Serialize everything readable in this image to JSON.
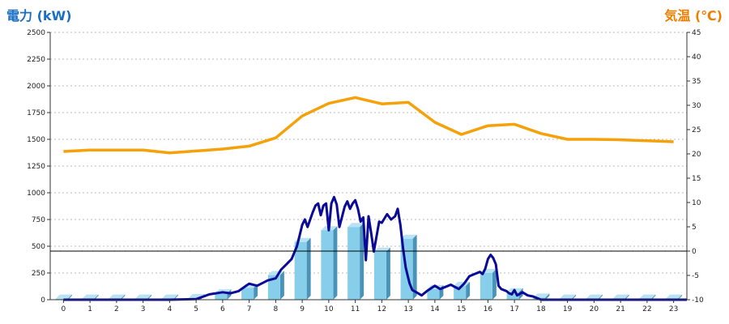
{
  "colors": {
    "left_title": "#1a6fc4",
    "right_title": "#ef7d00",
    "temperature_line": "#f5a10a",
    "power_line": "#0a0a96",
    "bar_front": "#87ceeb",
    "bar_side": "#4a93b8",
    "bar_top": "#b9e3f5",
    "grid": "#bbbbbb",
    "zero_line": "#000000"
  },
  "chart_data": {
    "type": "bar",
    "title": "",
    "left_axis_title": "電力 (kW)",
    "right_axis_title": "気温 (℃)",
    "grid": true,
    "x_categories": [
      "0",
      "1",
      "2",
      "3",
      "4",
      "5",
      "6",
      "7",
      "8",
      "9",
      "10",
      "11",
      "12",
      "13",
      "14",
      "15",
      "16",
      "17",
      "18",
      "19",
      "20",
      "21",
      "22",
      "23"
    ],
    "y_left": {
      "ylim": [
        0,
        2500
      ],
      "ticks": [
        "0",
        "250",
        "500",
        "750",
        "1000",
        "1250",
        "1500",
        "1750",
        "2000",
        "2250",
        "2500"
      ]
    },
    "y_right": {
      "ylim": [
        -10,
        45
      ],
      "ticks": [
        "-10",
        "-5",
        "0",
        "5",
        "10",
        "15",
        "20",
        "25",
        "30",
        "35",
        "40",
        "45"
      ]
    },
    "reference_line_right": 0,
    "series": [
      {
        "kind": "bar",
        "axis": "left",
        "values": [
          10,
          10,
          10,
          10,
          10,
          15,
          60,
          110,
          230,
          540,
          650,
          680,
          450,
          570,
          100,
          130,
          250,
          70,
          20,
          10,
          10,
          10,
          10,
          10
        ]
      },
      {
        "kind": "line",
        "axis": "right",
        "values": [
          20.5,
          20.8,
          20.8,
          20.8,
          20.2,
          20.6,
          21.0,
          21.6,
          23.3,
          27.8,
          30.4,
          31.6,
          30.3,
          30.6,
          26.5,
          24.0,
          25.8,
          26.1,
          24.2,
          23.0,
          23.0,
          22.9,
          22.7,
          22.5
        ]
      },
      {
        "kind": "line",
        "axis": "left",
        "x": [
          0,
          4,
          5,
          5.5,
          6,
          6.3,
          6.6,
          7,
          7.3,
          7.7,
          8,
          8.2,
          8.4,
          8.6,
          8.8,
          8.9,
          9,
          9.1,
          9.2,
          9.4,
          9.5,
          9.6,
          9.7,
          9.8,
          9.9,
          10,
          10.1,
          10.2,
          10.3,
          10.4,
          10.6,
          10.7,
          10.8,
          10.9,
          11,
          11.1,
          11.2,
          11.3,
          11.4,
          11.5,
          11.6,
          11.7,
          11.9,
          12,
          12.2,
          12.35,
          12.5,
          12.6,
          12.7,
          12.8,
          12.9,
          13,
          13.05,
          13.1,
          13.15,
          13.3,
          13.5,
          13.7,
          14,
          14.2,
          14.4,
          14.6,
          14.9,
          15.1,
          15.3,
          15.5,
          15.7,
          15.8,
          15.9,
          16,
          16.1,
          16.2,
          16.3,
          16.4,
          16.5,
          16.7,
          16.8,
          16.9,
          17,
          17.1,
          17.3,
          17.5,
          17.7,
          17.9,
          18,
          23.5
        ],
        "values": [
          0,
          0,
          5,
          50,
          70,
          60,
          80,
          150,
          130,
          180,
          200,
          280,
          330,
          380,
          500,
          600,
          700,
          750,
          680,
          820,
          880,
          900,
          790,
          880,
          900,
          650,
          900,
          960,
          890,
          680,
          870,
          920,
          850,
          900,
          930,
          850,
          730,
          770,
          370,
          780,
          620,
          450,
          730,
          720,
          800,
          750,
          780,
          850,
          700,
          480,
          300,
          200,
          150,
          120,
          90,
          70,
          40,
          80,
          130,
          100,
          120,
          140,
          100,
          150,
          220,
          240,
          260,
          240,
          290,
          380,
          420,
          390,
          330,
          130,
          100,
          80,
          60,
          50,
          90,
          40,
          70,
          40,
          30,
          10,
          0,
          0
        ]
      }
    ]
  }
}
